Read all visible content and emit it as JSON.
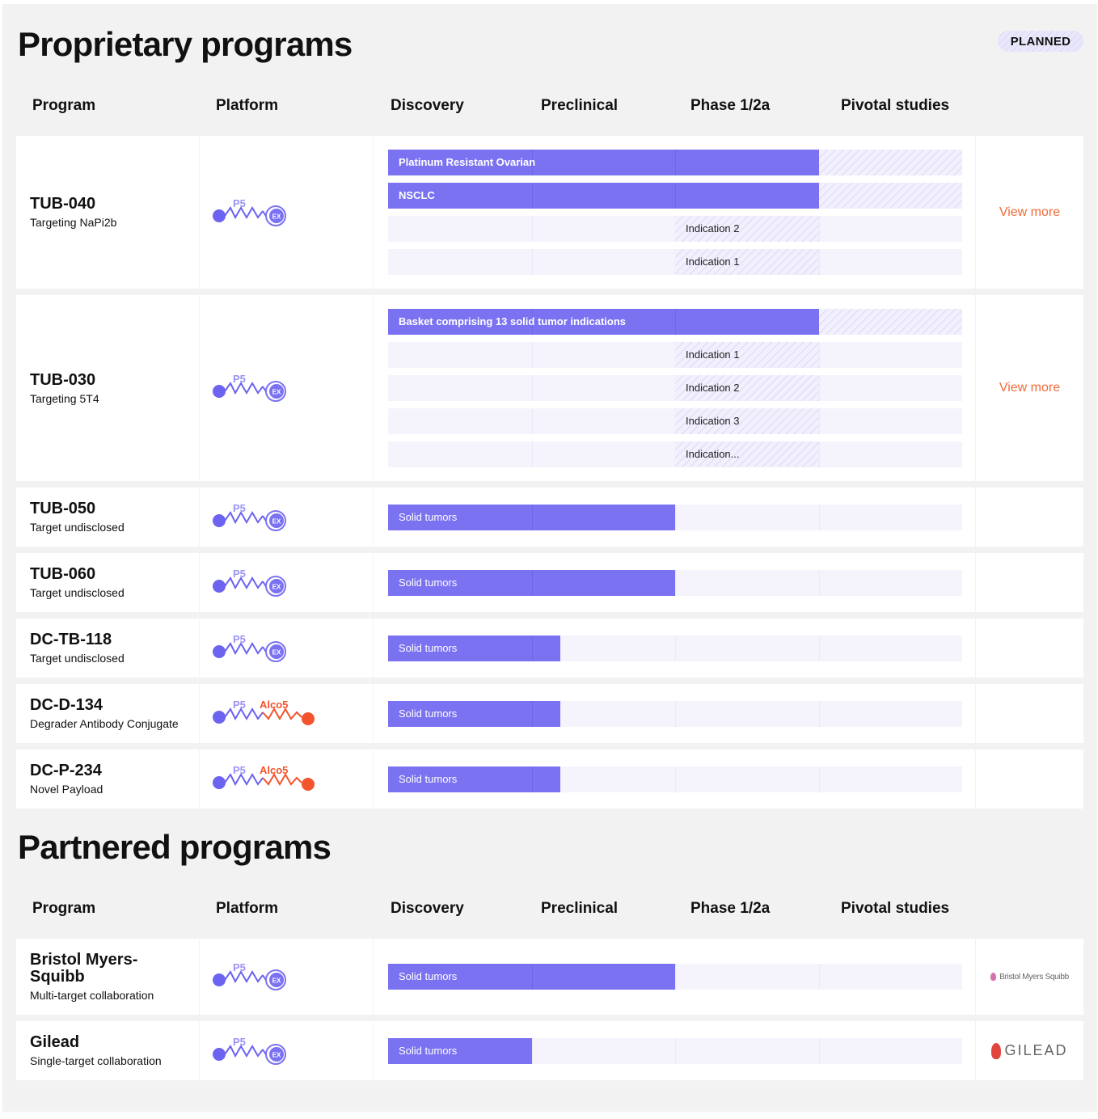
{
  "badge": "PLANNED",
  "sections": [
    {
      "title": "Proprietary programs",
      "headers": [
        "Program",
        "Platform",
        "Discovery",
        "Preclinical",
        "Phase 1/2a",
        "Pivotal studies"
      ],
      "programs": [
        {
          "name": "TUB-040",
          "target": "Targeting NaPi2b",
          "platform": [
            "P5",
            "EX"
          ],
          "link": "View more",
          "indications": [
            {
              "label": "Platinum Resistant Ovarian",
              "progress": 3,
              "planned": [
                3,
                4
              ]
            },
            {
              "label": "NSCLC",
              "progress": 3,
              "planned": [
                3,
                4
              ]
            },
            {
              "label": "Indication 2",
              "progress": null,
              "planned": [
                2,
                3
              ]
            },
            {
              "label": "Indication 1",
              "progress": null,
              "planned": [
                2,
                3
              ]
            }
          ]
        },
        {
          "name": "TUB-030",
          "target": "Targeting 5T4",
          "platform": [
            "P5",
            "EX"
          ],
          "link": "View more",
          "indications": [
            {
              "label": "Basket comprising 13 solid tumor indications",
              "progress": 3,
              "planned": [
                3,
                4
              ]
            },
            {
              "label": "Indication 1",
              "progress": null,
              "planned": [
                2,
                3
              ]
            },
            {
              "label": "Indication 2",
              "progress": null,
              "planned": [
                2,
                3
              ]
            },
            {
              "label": "Indication 3",
              "progress": null,
              "planned": [
                2,
                3
              ]
            },
            {
              "label": "Indication...",
              "progress": null,
              "planned": [
                2,
                3
              ]
            }
          ]
        },
        {
          "name": "TUB-050",
          "target": "Target undisclosed",
          "platform": [
            "P5",
            "EX"
          ],
          "indications": [
            {
              "label": "Solid tumors",
              "progress": 2
            }
          ]
        },
        {
          "name": "TUB-060",
          "target": "Target undisclosed",
          "platform": [
            "P5",
            "EX"
          ],
          "indications": [
            {
              "label": "Solid tumors",
              "progress": 2
            }
          ]
        },
        {
          "name": "DC-TB-118",
          "target": "Target undisclosed",
          "platform": [
            "P5",
            "EX"
          ],
          "indications": [
            {
              "label": "Solid tumors",
              "progress": 1.2
            }
          ]
        },
        {
          "name": "DC-D-134",
          "target": "Degrader Antibody Conjugate",
          "platform": [
            "P5",
            "Alco5"
          ],
          "indications": [
            {
              "label": "Solid tumors",
              "progress": 1.2
            }
          ]
        },
        {
          "name": "DC-P-234",
          "target": "Novel Payload",
          "platform": [
            "P5",
            "Alco5"
          ],
          "indications": [
            {
              "label": "Solid tumors",
              "progress": 1.2
            }
          ]
        }
      ]
    },
    {
      "title": "Partnered programs",
      "headers": [
        "Program",
        "Platform",
        "Discovery",
        "Preclinical",
        "Phase 1/2a",
        "Pivotal studies"
      ],
      "programs": [
        {
          "name": "Bristol Myers-Squibb",
          "target": "Multi-target collaboration",
          "platform": [
            "P5",
            "EX"
          ],
          "partner": "Bristol Myers Squibb",
          "indications": [
            {
              "label": "Solid tumors",
              "progress": 2
            }
          ]
        },
        {
          "name": "Gilead",
          "target": "Single-target collaboration",
          "platform": [
            "P5",
            "EX"
          ],
          "partner": "GILEAD",
          "indications": [
            {
              "label": "Solid tumors",
              "progress": 1
            }
          ]
        }
      ]
    }
  ]
}
